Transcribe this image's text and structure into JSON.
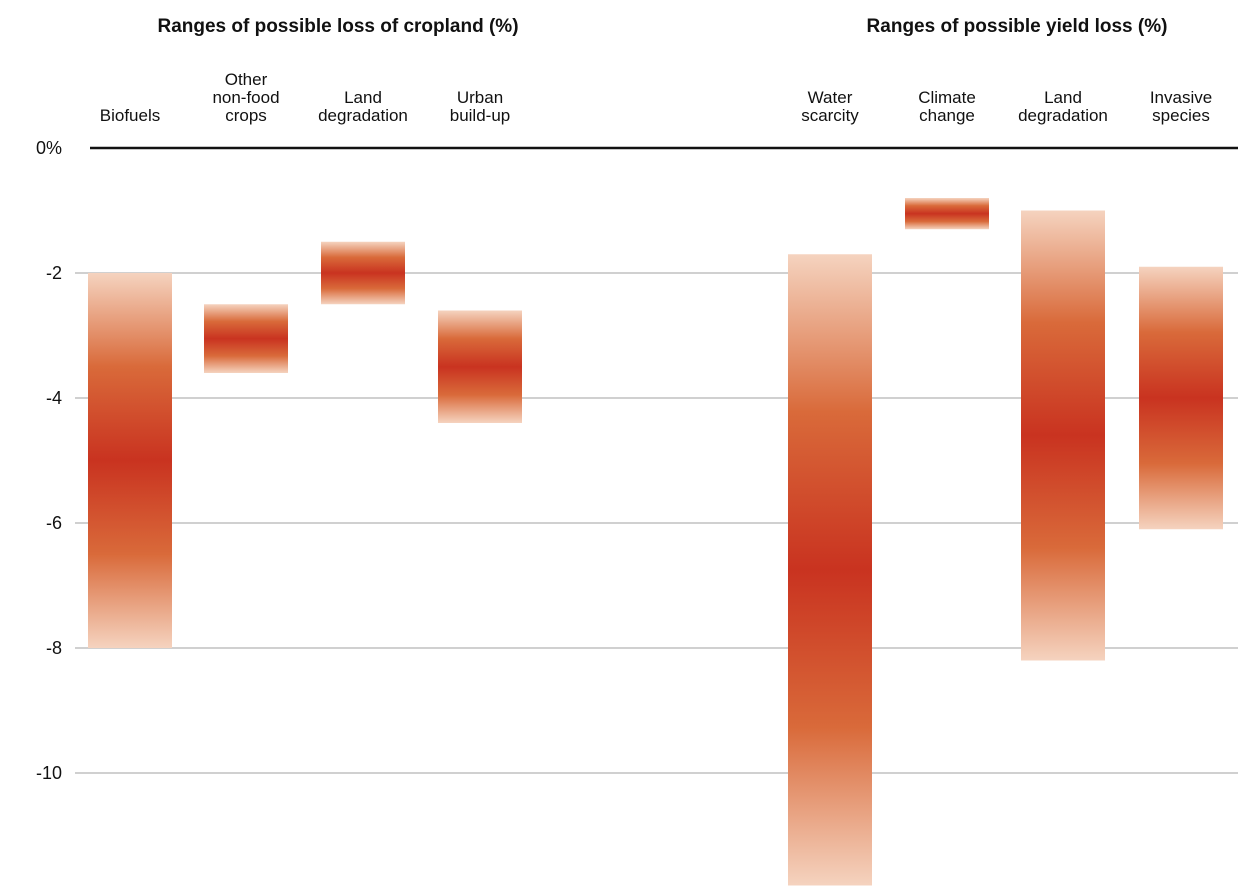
{
  "chart_data": {
    "type": "bar",
    "y_unit_label": "0%",
    "yticks": [
      "0%",
      "-2",
      "-4",
      "-6",
      "-8",
      "-10"
    ],
    "ytick_values": [
      0,
      -2,
      -4,
      -6,
      -8,
      -10
    ],
    "ylim": [
      -11.8,
      0
    ],
    "gridlines": true,
    "panels": [
      {
        "title": "Ranges of possible loss of cropland (%)",
        "bars": [
          {
            "label": [
              "Biofuels"
            ],
            "low": -8.0,
            "high": -2.0,
            "center": -5.0
          },
          {
            "label": [
              "Other",
              "non-food",
              "crops"
            ],
            "low": -3.6,
            "high": -2.5,
            "center": -3.05
          },
          {
            "label": [
              "Land",
              "degradation"
            ],
            "low": -2.5,
            "high": -1.5,
            "center": -2.0
          },
          {
            "label": [
              "Urban",
              "build-up"
            ],
            "low": -4.4,
            "high": -2.6,
            "center": -3.5
          }
        ]
      },
      {
        "title": "Ranges of possible yield loss (%)",
        "bars": [
          {
            "label": [
              "Water",
              "scarcity"
            ],
            "low": -11.8,
            "high": -1.7,
            "center": -6.75
          },
          {
            "label": [
              "Climate",
              "change"
            ],
            "low": -1.3,
            "high": -0.8,
            "center": -1.05
          },
          {
            "label": [
              "Land",
              "degradation"
            ],
            "low": -8.2,
            "high": -1.0,
            "center": -4.6
          },
          {
            "label": [
              "Invasive",
              "species"
            ],
            "low": -6.1,
            "high": -1.9,
            "center": -4.0
          }
        ]
      }
    ]
  },
  "colors": {
    "bar_core": "#c93320",
    "bar_mid": "#d96a3a",
    "bar_edge": "#f5d3bf",
    "zero_line": "#111111",
    "grid": "#b3b3b3"
  }
}
